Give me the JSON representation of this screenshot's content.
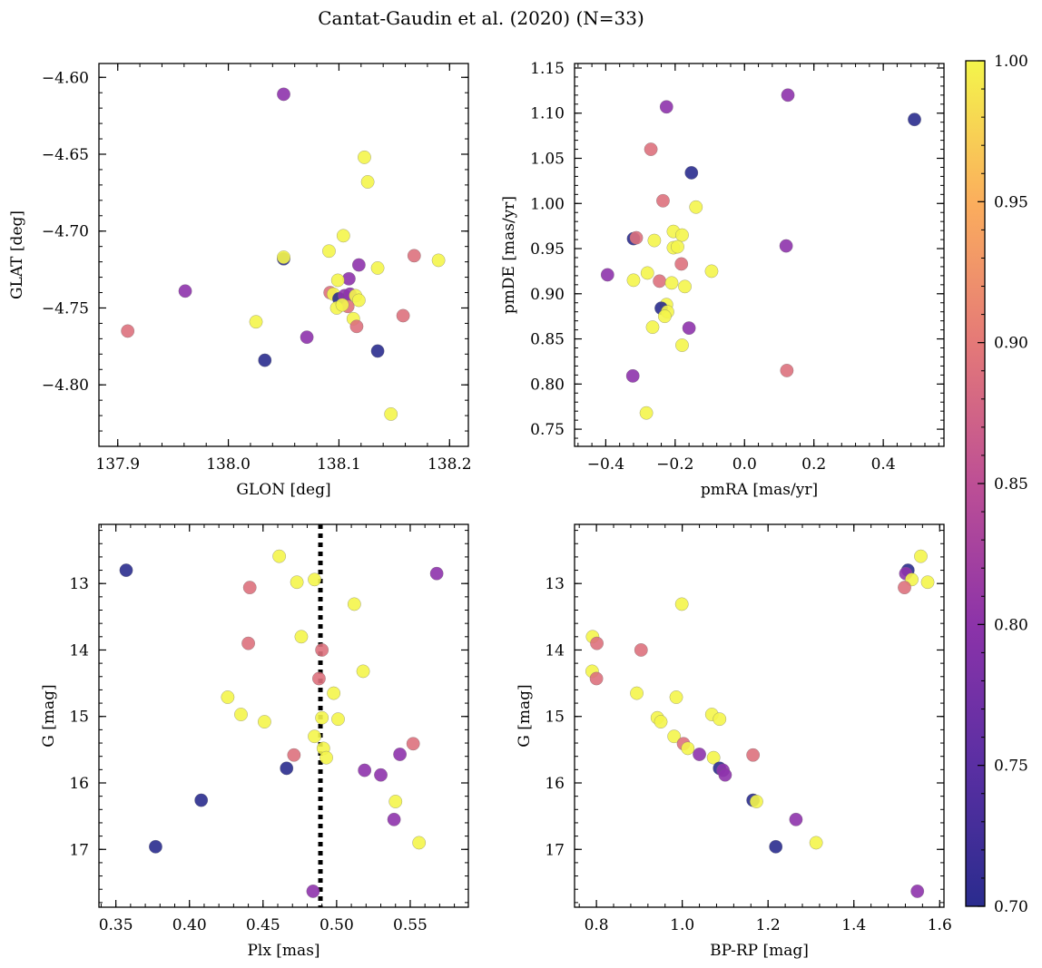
{
  "title": "Cantat-Gaudin et al. (2020) (N=33)",
  "colorbar": {
    "range": [
      0.7,
      1.0
    ],
    "ticks": [
      "0.70",
      "0.75",
      "0.80",
      "0.85",
      "0.90",
      "0.95",
      "1.00"
    ],
    "colormap": "plasma"
  },
  "chart_data": [
    {
      "type": "scatter",
      "xlabel": "GLON [deg]",
      "ylabel": "GLAT [deg]",
      "xlim": [
        137.883,
        138.217
      ],
      "ylim": [
        -4.84,
        -4.591
      ],
      "xticks": [
        137.9,
        138.0,
        138.1,
        138.2
      ],
      "xtick_labels": [
        "137.9",
        "138.0",
        "138.1",
        "138.2"
      ],
      "yticks": [
        -4.6,
        -4.65,
        -4.7,
        -4.75,
        -4.8
      ],
      "ytick_labels": [
        "−4.60",
        "−4.65",
        "−4.70",
        "−4.75",
        "−4.80"
      ],
      "points": [
        {
          "x": 138.05,
          "y": -4.611,
          "c": 0.8
        },
        {
          "x": 138.123,
          "y": -4.652,
          "c": 1.0
        },
        {
          "x": 138.126,
          "y": -4.668,
          "c": 1.0
        },
        {
          "x": 138.104,
          "y": -4.703,
          "c": 1.0
        },
        {
          "x": 138.091,
          "y": -4.713,
          "c": 1.0
        },
        {
          "x": 138.168,
          "y": -4.716,
          "c": 0.89
        },
        {
          "x": 138.19,
          "y": -4.719,
          "c": 1.0
        },
        {
          "x": 138.05,
          "y": -4.718,
          "c": 0.7
        },
        {
          "x": 138.05,
          "y": -4.717,
          "c": 1.0
        },
        {
          "x": 138.118,
          "y": -4.722,
          "c": 0.8
        },
        {
          "x": 138.135,
          "y": -4.724,
          "c": 1.0
        },
        {
          "x": 138.109,
          "y": -4.731,
          "c": 0.8
        },
        {
          "x": 138.099,
          "y": -4.732,
          "c": 1.0
        },
        {
          "x": 137.961,
          "y": -4.739,
          "c": 0.8
        },
        {
          "x": 138.092,
          "y": -4.74,
          "c": 0.89
        },
        {
          "x": 138.095,
          "y": -4.741,
          "c": 1.0
        },
        {
          "x": 138.1,
          "y": -4.744,
          "c": 0.7
        },
        {
          "x": 138.105,
          "y": -4.742,
          "c": 0.8
        },
        {
          "x": 138.11,
          "y": -4.741,
          "c": 0.8
        },
        {
          "x": 138.115,
          "y": -4.742,
          "c": 1.0
        },
        {
          "x": 138.118,
          "y": -4.745,
          "c": 1.0
        },
        {
          "x": 138.108,
          "y": -4.749,
          "c": 0.89
        },
        {
          "x": 138.098,
          "y": -4.75,
          "c": 1.0
        },
        {
          "x": 138.103,
          "y": -4.748,
          "c": 1.0
        },
        {
          "x": 138.158,
          "y": -4.755,
          "c": 0.89
        },
        {
          "x": 138.113,
          "y": -4.757,
          "c": 1.0
        },
        {
          "x": 138.025,
          "y": -4.759,
          "c": 1.0
        },
        {
          "x": 138.116,
          "y": -4.762,
          "c": 0.89
        },
        {
          "x": 137.909,
          "y": -4.765,
          "c": 0.89
        },
        {
          "x": 138.071,
          "y": -4.769,
          "c": 0.8
        },
        {
          "x": 138.135,
          "y": -4.778,
          "c": 0.7
        },
        {
          "x": 138.033,
          "y": -4.784,
          "c": 0.7
        },
        {
          "x": 138.147,
          "y": -4.819,
          "c": 1.0
        }
      ]
    },
    {
      "type": "scatter",
      "xlabel": "pmRA [mas/yr]",
      "ylabel": "pmDE [mas/yr]",
      "xlim": [
        -0.49,
        0.575
      ],
      "ylim": [
        0.731,
        1.155
      ],
      "xticks": [
        -0.4,
        -0.2,
        0.0,
        0.2,
        0.4
      ],
      "xtick_labels": [
        "−0.4",
        "−0.2",
        "0.0",
        "0.2",
        "0.4"
      ],
      "yticks": [
        0.75,
        0.8,
        0.85,
        0.9,
        0.95,
        1.0,
        1.05,
        1.1,
        1.15
      ],
      "ytick_labels": [
        "0.75",
        "0.80",
        "0.85",
        "0.90",
        "0.95",
        "1.00",
        "1.05",
        "1.10",
        "1.15"
      ],
      "points": [
        {
          "x": 0.125,
          "y": 1.12,
          "c": 0.8
        },
        {
          "x": -0.225,
          "y": 1.107,
          "c": 0.8
        },
        {
          "x": 0.49,
          "y": 1.093,
          "c": 0.7
        },
        {
          "x": -0.27,
          "y": 1.06,
          "c": 0.89
        },
        {
          "x": -0.153,
          "y": 1.034,
          "c": 0.7
        },
        {
          "x": -0.235,
          "y": 1.003,
          "c": 0.89
        },
        {
          "x": -0.14,
          "y": 0.996,
          "c": 1.0
        },
        {
          "x": -0.205,
          "y": 0.969,
          "c": 1.0
        },
        {
          "x": -0.18,
          "y": 0.965,
          "c": 1.0
        },
        {
          "x": -0.32,
          "y": 0.961,
          "c": 0.7
        },
        {
          "x": -0.312,
          "y": 0.962,
          "c": 0.89
        },
        {
          "x": -0.26,
          "y": 0.959,
          "c": 1.0
        },
        {
          "x": 0.12,
          "y": 0.953,
          "c": 0.8
        },
        {
          "x": -0.205,
          "y": 0.951,
          "c": 1.0
        },
        {
          "x": -0.193,
          "y": 0.952,
          "c": 1.0
        },
        {
          "x": -0.182,
          "y": 0.933,
          "c": 0.89
        },
        {
          "x": -0.095,
          "y": 0.925,
          "c": 1.0
        },
        {
          "x": -0.28,
          "y": 0.923,
          "c": 1.0
        },
        {
          "x": -0.395,
          "y": 0.921,
          "c": 0.8
        },
        {
          "x": -0.32,
          "y": 0.915,
          "c": 1.0
        },
        {
          "x": -0.245,
          "y": 0.914,
          "c": 0.89
        },
        {
          "x": -0.21,
          "y": 0.912,
          "c": 1.0
        },
        {
          "x": -0.172,
          "y": 0.908,
          "c": 1.0
        },
        {
          "x": -0.225,
          "y": 0.888,
          "c": 1.0
        },
        {
          "x": -0.24,
          "y": 0.884,
          "c": 0.7
        },
        {
          "x": -0.222,
          "y": 0.88,
          "c": 1.0
        },
        {
          "x": -0.23,
          "y": 0.875,
          "c": 1.0
        },
        {
          "x": -0.265,
          "y": 0.863,
          "c": 1.0
        },
        {
          "x": -0.16,
          "y": 0.862,
          "c": 0.8
        },
        {
          "x": -0.18,
          "y": 0.843,
          "c": 1.0
        },
        {
          "x": 0.122,
          "y": 0.815,
          "c": 0.89
        },
        {
          "x": -0.322,
          "y": 0.809,
          "c": 0.8
        },
        {
          "x": -0.283,
          "y": 0.768,
          "c": 1.0
        }
      ]
    },
    {
      "type": "scatter",
      "xlabel": "Plx [mas]",
      "ylabel": "G [mag]",
      "xlim": [
        0.3385,
        0.5895
      ],
      "ylim": [
        17.87,
        12.11
      ],
      "xticks": [
        0.35,
        0.4,
        0.45,
        0.5,
        0.55
      ],
      "xtick_labels": [
        "0.35",
        "0.40",
        "0.45",
        "0.50",
        "0.55"
      ],
      "yticks": [
        13,
        14,
        15,
        16,
        17
      ],
      "ytick_labels": [
        "13",
        "14",
        "15",
        "16",
        "17"
      ],
      "reference_line": {
        "x": 0.489,
        "style": "dotted",
        "color": "#000000"
      },
      "points": [
        {
          "x": 0.461,
          "y": 12.59,
          "c": 1.0
        },
        {
          "x": 0.357,
          "y": 12.8,
          "c": 0.7
        },
        {
          "x": 0.568,
          "y": 12.85,
          "c": 0.8
        },
        {
          "x": 0.485,
          "y": 12.94,
          "c": 1.0
        },
        {
          "x": 0.473,
          "y": 12.98,
          "c": 1.0
        },
        {
          "x": 0.441,
          "y": 13.06,
          "c": 0.89
        },
        {
          "x": 0.512,
          "y": 13.31,
          "c": 1.0
        },
        {
          "x": 0.476,
          "y": 13.8,
          "c": 1.0
        },
        {
          "x": 0.44,
          "y": 13.9,
          "c": 0.89
        },
        {
          "x": 0.49,
          "y": 14.0,
          "c": 0.89
        },
        {
          "x": 0.518,
          "y": 14.32,
          "c": 1.0
        },
        {
          "x": 0.488,
          "y": 14.43,
          "c": 0.89
        },
        {
          "x": 0.498,
          "y": 14.65,
          "c": 1.0
        },
        {
          "x": 0.426,
          "y": 14.71,
          "c": 1.0
        },
        {
          "x": 0.435,
          "y": 14.97,
          "c": 1.0
        },
        {
          "x": 0.49,
          "y": 15.02,
          "c": 1.0
        },
        {
          "x": 0.501,
          "y": 15.04,
          "c": 1.0
        },
        {
          "x": 0.451,
          "y": 15.08,
          "c": 1.0
        },
        {
          "x": 0.485,
          "y": 15.3,
          "c": 1.0
        },
        {
          "x": 0.552,
          "y": 15.41,
          "c": 0.89
        },
        {
          "x": 0.491,
          "y": 15.48,
          "c": 1.0
        },
        {
          "x": 0.471,
          "y": 15.58,
          "c": 0.89
        },
        {
          "x": 0.543,
          "y": 15.57,
          "c": 0.8
        },
        {
          "x": 0.493,
          "y": 15.62,
          "c": 1.0
        },
        {
          "x": 0.466,
          "y": 15.78,
          "c": 0.7
        },
        {
          "x": 0.519,
          "y": 15.81,
          "c": 0.8
        },
        {
          "x": 0.53,
          "y": 15.88,
          "c": 0.8
        },
        {
          "x": 0.408,
          "y": 16.26,
          "c": 0.7
        },
        {
          "x": 0.54,
          "y": 16.28,
          "c": 1.0
        },
        {
          "x": 0.539,
          "y": 16.55,
          "c": 0.8
        },
        {
          "x": 0.556,
          "y": 16.9,
          "c": 1.0
        },
        {
          "x": 0.377,
          "y": 16.96,
          "c": 0.7
        },
        {
          "x": 0.484,
          "y": 17.63,
          "c": 0.8
        }
      ]
    },
    {
      "type": "scatter",
      "xlabel": "BP-RP [mag]",
      "ylabel": "G [mag]",
      "xlim": [
        0.749,
        1.61
      ],
      "ylim": [
        17.87,
        12.11
      ],
      "xticks": [
        0.8,
        1.0,
        1.2,
        1.4,
        1.6
      ],
      "xtick_labels": [
        "0.8",
        "1.0",
        "1.2",
        "1.4",
        "1.6"
      ],
      "yticks": [
        13,
        14,
        15,
        16,
        17
      ],
      "ytick_labels": [
        "13",
        "14",
        "15",
        "16",
        "17"
      ],
      "points": [
        {
          "x": 1.556,
          "y": 12.59,
          "c": 1.0
        },
        {
          "x": 1.526,
          "y": 12.8,
          "c": 0.7
        },
        {
          "x": 1.521,
          "y": 12.85,
          "c": 0.8
        },
        {
          "x": 1.535,
          "y": 12.94,
          "c": 1.0
        },
        {
          "x": 1.572,
          "y": 12.98,
          "c": 1.0
        },
        {
          "x": 1.518,
          "y": 13.06,
          "c": 0.89
        },
        {
          "x": 0.999,
          "y": 13.31,
          "c": 1.0
        },
        {
          "x": 0.791,
          "y": 13.8,
          "c": 1.0
        },
        {
          "x": 0.801,
          "y": 13.9,
          "c": 0.89
        },
        {
          "x": 0.904,
          "y": 14.0,
          "c": 0.89
        },
        {
          "x": 0.79,
          "y": 14.32,
          "c": 1.0
        },
        {
          "x": 0.8,
          "y": 14.43,
          "c": 0.89
        },
        {
          "x": 0.894,
          "y": 14.65,
          "c": 1.0
        },
        {
          "x": 0.986,
          "y": 14.71,
          "c": 1.0
        },
        {
          "x": 1.069,
          "y": 14.97,
          "c": 1.0
        },
        {
          "x": 0.942,
          "y": 15.02,
          "c": 1.0
        },
        {
          "x": 1.087,
          "y": 15.04,
          "c": 1.0
        },
        {
          "x": 0.95,
          "y": 15.08,
          "c": 1.0
        },
        {
          "x": 0.981,
          "y": 15.3,
          "c": 1.0
        },
        {
          "x": 1.003,
          "y": 15.41,
          "c": 0.89
        },
        {
          "x": 1.013,
          "y": 15.48,
          "c": 1.0
        },
        {
          "x": 1.165,
          "y": 15.58,
          "c": 0.89
        },
        {
          "x": 1.04,
          "y": 15.57,
          "c": 0.8
        },
        {
          "x": 1.073,
          "y": 15.62,
          "c": 1.0
        },
        {
          "x": 1.087,
          "y": 15.78,
          "c": 0.7
        },
        {
          "x": 1.095,
          "y": 15.81,
          "c": 0.8
        },
        {
          "x": 1.1,
          "y": 15.88,
          "c": 0.8
        },
        {
          "x": 1.165,
          "y": 16.26,
          "c": 0.7
        },
        {
          "x": 1.173,
          "y": 16.28,
          "c": 1.0
        },
        {
          "x": 1.265,
          "y": 16.55,
          "c": 0.8
        },
        {
          "x": 1.312,
          "y": 16.9,
          "c": 1.0
        },
        {
          "x": 1.218,
          "y": 16.96,
          "c": 0.7
        },
        {
          "x": 1.548,
          "y": 17.63,
          "c": 0.8
        }
      ]
    }
  ]
}
